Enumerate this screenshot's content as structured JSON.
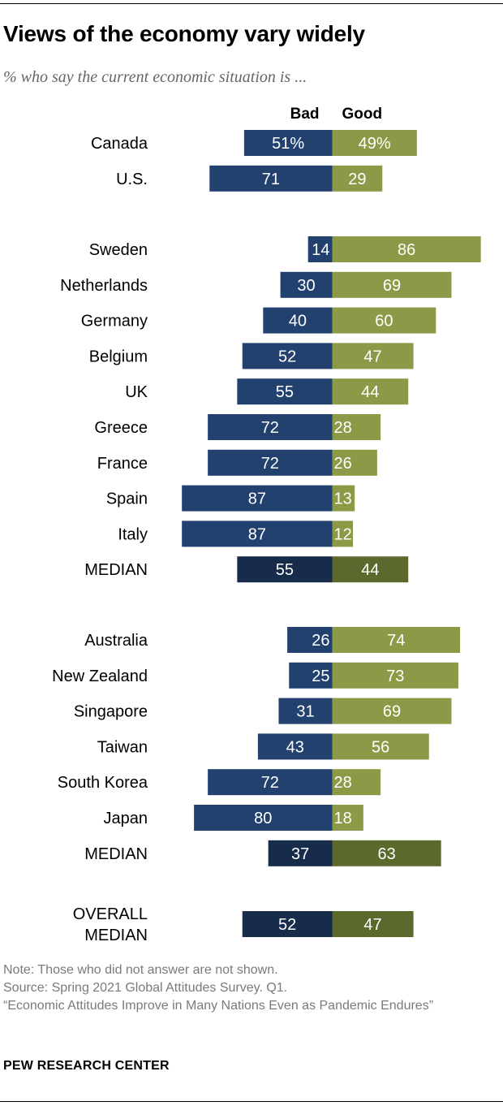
{
  "title": "Views of the economy vary widely",
  "subtitle": "% who say the current economic situation is ...",
  "colors": {
    "bad": "#22416f",
    "good": "#8b9a47",
    "bad_median": "#172b4a",
    "good_median": "#5b6a2c"
  },
  "chart_data": {
    "type": "bar",
    "orientation": "horizontal-diverging",
    "title": "Views of the economy vary widely",
    "subtitle": "% who say the current economic situation is ...",
    "series_names": [
      "Bad",
      "Good"
    ],
    "unit": "%",
    "groups": [
      {
        "rows": [
          {
            "label": "Canada",
            "bad": 51,
            "good": 49,
            "bad_label": "51%",
            "good_label": "49%",
            "median": false
          },
          {
            "label": "U.S.",
            "bad": 71,
            "good": 29,
            "bad_label": "71",
            "good_label": "29",
            "median": false
          }
        ]
      },
      {
        "rows": [
          {
            "label": "Sweden",
            "bad": 14,
            "good": 86,
            "bad_label": "14",
            "good_label": "86",
            "median": false
          },
          {
            "label": "Netherlands",
            "bad": 30,
            "good": 69,
            "bad_label": "30",
            "good_label": "69",
            "median": false
          },
          {
            "label": "Germany",
            "bad": 40,
            "good": 60,
            "bad_label": "40",
            "good_label": "60",
            "median": false
          },
          {
            "label": "Belgium",
            "bad": 52,
            "good": 47,
            "bad_label": "52",
            "good_label": "47",
            "median": false
          },
          {
            "label": "UK",
            "bad": 55,
            "good": 44,
            "bad_label": "55",
            "good_label": "44",
            "median": false
          },
          {
            "label": "Greece",
            "bad": 72,
            "good": 28,
            "bad_label": "72",
            "good_label": "28",
            "median": false
          },
          {
            "label": "France",
            "bad": 72,
            "good": 26,
            "bad_label": "72",
            "good_label": "26",
            "median": false
          },
          {
            "label": "Spain",
            "bad": 87,
            "good": 13,
            "bad_label": "87",
            "good_label": "13",
            "median": false
          },
          {
            "label": "Italy",
            "bad": 87,
            "good": 12,
            "bad_label": "87",
            "good_label": "12",
            "median": false
          },
          {
            "label": "MEDIAN",
            "bad": 55,
            "good": 44,
            "bad_label": "55",
            "good_label": "44",
            "median": true
          }
        ]
      },
      {
        "rows": [
          {
            "label": "Australia",
            "bad": 26,
            "good": 74,
            "bad_label": "26",
            "good_label": "74",
            "median": false
          },
          {
            "label": "New Zealand",
            "bad": 25,
            "good": 73,
            "bad_label": "25",
            "good_label": "73",
            "median": false
          },
          {
            "label": "Singapore",
            "bad": 31,
            "good": 69,
            "bad_label": "31",
            "good_label": "69",
            "median": false
          },
          {
            "label": "Taiwan",
            "bad": 43,
            "good": 56,
            "bad_label": "43",
            "good_label": "56",
            "median": false
          },
          {
            "label": "South Korea",
            "bad": 72,
            "good": 28,
            "bad_label": "72",
            "good_label": "28",
            "median": false
          },
          {
            "label": "Japan",
            "bad": 80,
            "good": 18,
            "bad_label": "80",
            "good_label": "18",
            "median": false
          },
          {
            "label": "MEDIAN",
            "bad": 37,
            "good": 63,
            "bad_label": "37",
            "good_label": "63",
            "median": true
          }
        ]
      },
      {
        "rows": [
          {
            "label": "OVERALL MEDIAN",
            "label_lines": [
              "OVERALL",
              "MEDIAN"
            ],
            "bad": 52,
            "good": 47,
            "bad_label": "52",
            "good_label": "47",
            "median": true
          }
        ]
      }
    ]
  },
  "footer": {
    "note": "Note: Those who did not answer are not shown.",
    "source": "Source: Spring 2021 Global Attitudes Survey. Q1.",
    "report": "“Economic Attitudes Improve in Many Nations Even as Pandemic Endures”",
    "brand": "PEW RESEARCH CENTER"
  }
}
